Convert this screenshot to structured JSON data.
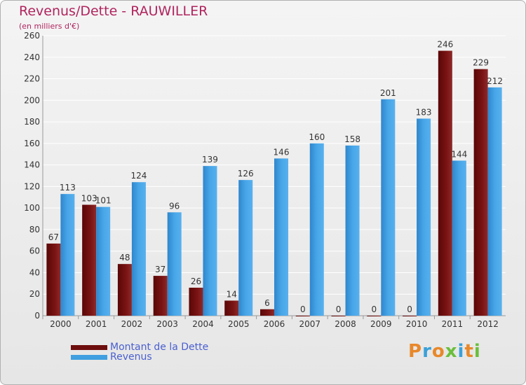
{
  "chart_data": {
    "type": "bar",
    "title": "Revenus/Dette - RAUWILLER",
    "subtitle": "(en milliers d'€)",
    "categories": [
      "2000",
      "2001",
      "2002",
      "2003",
      "2004",
      "2005",
      "2006",
      "2007",
      "2008",
      "2009",
      "2010",
      "2011",
      "2012"
    ],
    "series": [
      {
        "name": "Montant de la Dette",
        "color": "#7a1414",
        "values": [
          67,
          103,
          48,
          37,
          26,
          14,
          6,
          0,
          0,
          0,
          0,
          246,
          229
        ]
      },
      {
        "name": "Revenus",
        "color": "#3f9fe0",
        "values": [
          113,
          101,
          124,
          96,
          139,
          126,
          146,
          160,
          158,
          201,
          183,
          144,
          212
        ]
      }
    ],
    "ylim": [
      0,
      260
    ],
    "yticks": [
      0,
      20,
      40,
      60,
      80,
      100,
      120,
      140,
      160,
      180,
      200,
      220,
      240,
      260
    ],
    "grid": true,
    "legend_position": "bottom-left"
  },
  "logo": {
    "text": "Proxiti",
    "letters": [
      "P",
      "r",
      "o",
      "x",
      "i",
      "t",
      "i"
    ],
    "colors": [
      "#e8882a",
      "#3aa0d8",
      "#e8882a",
      "#6abf3c",
      "#3aa0d8",
      "#e8882a",
      "#6abf3c"
    ]
  }
}
